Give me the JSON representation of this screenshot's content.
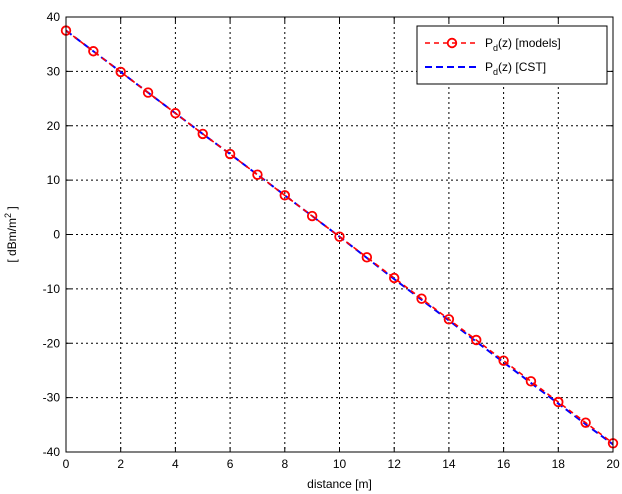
{
  "chart_data": {
    "type": "line",
    "xlabel": "distance [m]",
    "ylabel_prefix": "[ dBm/m",
    "ylabel_sup": "2",
    "ylabel_suffix": " ]",
    "xlim": [
      0,
      20
    ],
    "ylim": [
      -40,
      40
    ],
    "xticks": [
      0,
      2,
      4,
      6,
      8,
      10,
      12,
      14,
      16,
      18,
      20
    ],
    "yticks": [
      -40,
      -30,
      -20,
      -10,
      0,
      10,
      20,
      30,
      40
    ],
    "grid": true,
    "legend_position": "top-right",
    "series": [
      {
        "name_main": "P",
        "name_sub": "d",
        "name_rest": "(z) [models]",
        "color": "#ff0000",
        "line_style": "dashed",
        "marker": "circle",
        "x": [
          0,
          1,
          2,
          3,
          4,
          5,
          6,
          7,
          8,
          9,
          10,
          11,
          12,
          13,
          14,
          15,
          16,
          17,
          18,
          19,
          20
        ],
        "values": [
          37.5,
          33.7,
          29.9,
          26.1,
          22.3,
          18.5,
          14.8,
          11.0,
          7.2,
          3.4,
          -0.4,
          -4.2,
          -8.0,
          -11.8,
          -15.6,
          -19.4,
          -23.2,
          -27.0,
          -30.8,
          -34.6,
          -38.4
        ]
      },
      {
        "name_main": "P",
        "name_sub": "d",
        "name_rest": "(z) [CST]",
        "color": "#0000ff",
        "line_style": "dashed",
        "marker": "none",
        "x": [
          0,
          1,
          2,
          3,
          4,
          5,
          6,
          7,
          8,
          9,
          10,
          11,
          12,
          13,
          14,
          15,
          16,
          17,
          18,
          19,
          20
        ],
        "values": [
          37.5,
          33.7,
          29.9,
          26.1,
          22.3,
          18.5,
          14.8,
          11.0,
          7.2,
          3.4,
          -0.4,
          -4.3,
          -8.2,
          -12.0,
          -15.8,
          -19.7,
          -23.5,
          -27.3,
          -31.1,
          -34.9,
          -38.6
        ]
      }
    ]
  }
}
